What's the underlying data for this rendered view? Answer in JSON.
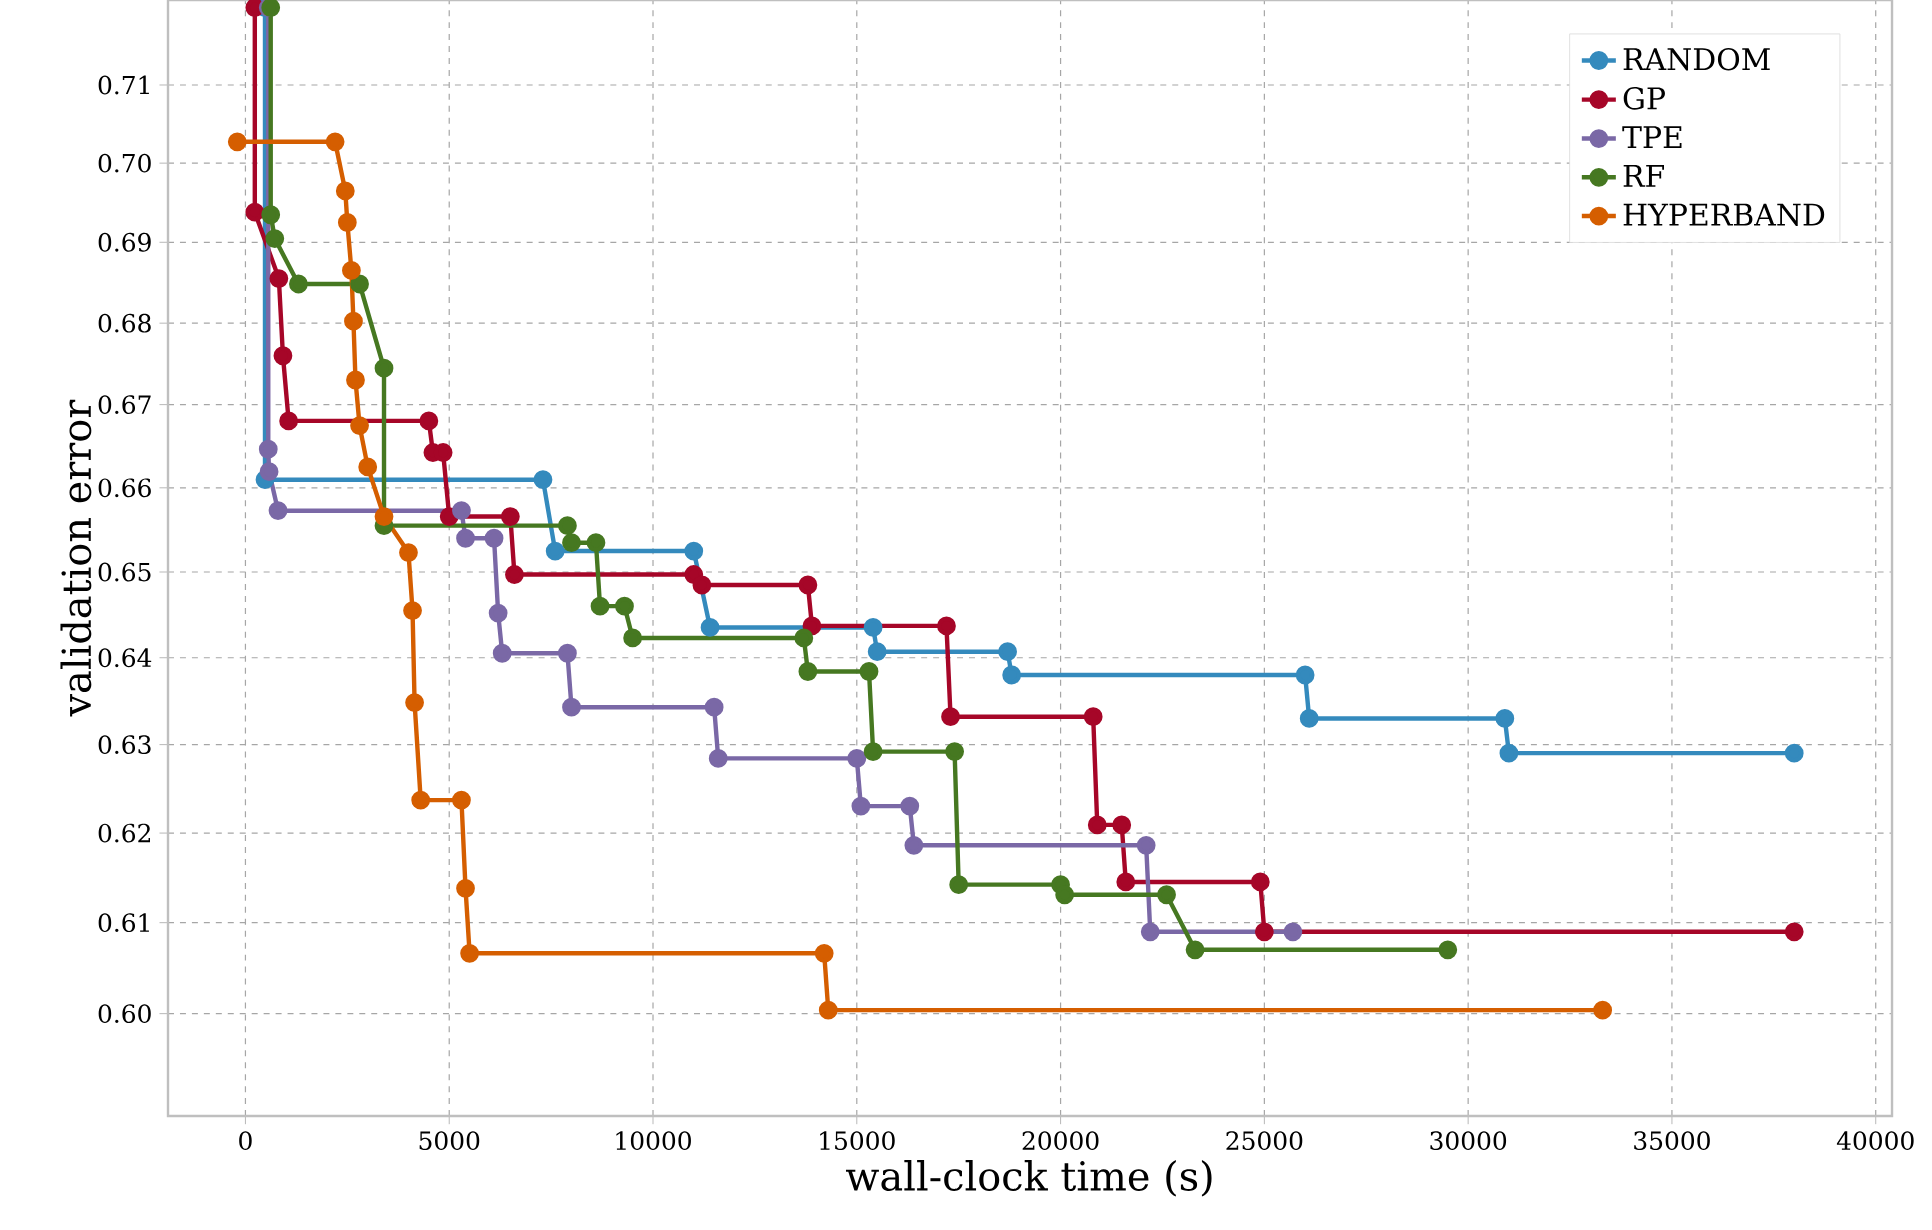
{
  "chart_data": {
    "type": "line",
    "xlabel": "wall-clock time (s)",
    "ylabel": "validation error",
    "xlim": [
      -1900,
      40400
    ],
    "ylim": [
      0.589,
      0.721
    ],
    "log": true,
    "xticks": [
      0,
      5000,
      10000,
      15000,
      20000,
      25000,
      30000,
      35000,
      40000
    ],
    "yticks": [
      {
        "value": 0.6,
        "label": "0.60"
      },
      0.61,
      0.62,
      0.63,
      0.64,
      0.65,
      0.66,
      0.67,
      0.68,
      0.69,
      {
        "value": 0.7,
        "label": "0.70"
      },
      0.71
    ],
    "grid": true,
    "legend": "top right",
    "marker": "circle",
    "line_style": "solid",
    "series": [
      {
        "name": "RANDOM",
        "color": "#348abd",
        "x": [
          480,
          480,
          7300,
          7600,
          11000,
          11400,
          15400,
          15500,
          18700,
          18800,
          26000,
          26100,
          30900,
          31000,
          38000
        ],
        "values": [
          0.72,
          0.661,
          0.661,
          0.6525,
          0.6525,
          0.6435,
          0.6435,
          0.6407,
          0.6407,
          0.638,
          0.638,
          0.633,
          0.633,
          0.629,
          0.629
        ]
      },
      {
        "name": "GP",
        "color": "#a60628",
        "x": [
          230,
          230,
          820,
          920,
          1060,
          4500,
          4600,
          4850,
          5000,
          6500,
          6600,
          11000,
          11200,
          13800,
          13900,
          17200,
          17300,
          20800,
          20900,
          21500,
          21600,
          24900,
          25000,
          38000
        ],
        "values": [
          0.72,
          0.6938,
          0.6855,
          0.676,
          0.668,
          0.668,
          0.6642,
          0.6642,
          0.6566,
          0.6566,
          0.6497,
          0.6497,
          0.6485,
          0.6485,
          0.6437,
          0.6437,
          0.6332,
          0.6332,
          0.6209,
          0.6209,
          0.6145,
          0.6145,
          0.609,
          0.609
        ]
      },
      {
        "name": "TPE",
        "color": "#7a68a6",
        "x": [
          560,
          560,
          580,
          800,
          5300,
          5400,
          6100,
          6200,
          6300,
          7900,
          8000,
          11500,
          11600,
          15000,
          15100,
          16300,
          16400,
          22100,
          22200,
          25700
        ],
        "values": [
          0.72,
          0.6646,
          0.6619,
          0.6573,
          0.6573,
          0.654,
          0.654,
          0.6452,
          0.6405,
          0.6405,
          0.6343,
          0.6343,
          0.6284,
          0.6284,
          0.623,
          0.623,
          0.6186,
          0.6186,
          0.609,
          0.609
        ]
      },
      {
        "name": "RF",
        "color": "#467821",
        "x": [
          620,
          620,
          720,
          1300,
          2800,
          3400,
          3400,
          7900,
          8000,
          8600,
          8700,
          9300,
          9500,
          13700,
          13800,
          15300,
          15400,
          17400,
          17500,
          20000,
          20100,
          22600,
          23300,
          29500
        ],
        "values": [
          0.72,
          0.6935,
          0.6905,
          0.6848,
          0.6848,
          0.6745,
          0.6555,
          0.6555,
          0.6535,
          0.6535,
          0.646,
          0.646,
          0.6423,
          0.6423,
          0.6384,
          0.6384,
          0.6292,
          0.6292,
          0.6142,
          0.6142,
          0.6131,
          0.6131,
          0.607,
          0.607
        ]
      },
      {
        "name": "HYPERBAND",
        "color": "#d55e00",
        "x": [
          -200,
          2200,
          2450,
          2500,
          2600,
          2650,
          2700,
          2800,
          3000,
          3400,
          4000,
          4100,
          4150,
          4300,
          5300,
          5400,
          5500,
          14200,
          14300,
          33300
        ],
        "values": [
          0.7027,
          0.7027,
          0.6965,
          0.6925,
          0.6865,
          0.6802,
          0.673,
          0.6675,
          0.6625,
          0.6566,
          0.6523,
          0.6455,
          0.6348,
          0.6237,
          0.6237,
          0.6138,
          0.6066,
          0.6066,
          0.6004,
          0.6004
        ]
      }
    ]
  }
}
